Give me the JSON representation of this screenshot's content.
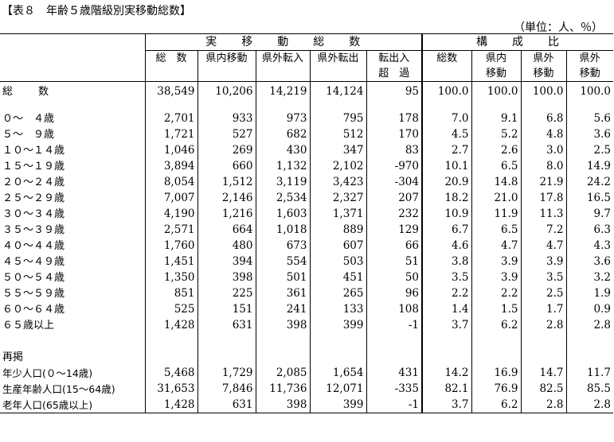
{
  "title": "【表８　年齢５歳階級別実移動総数】",
  "unit": "（単位：人、％）",
  "headers": {
    "group1": "実　　移　　動　　総　　数",
    "group2": "構　　成　　比",
    "cols1": [
      [
        "総　数",
        ""
      ],
      [
        "県内移動",
        ""
      ],
      [
        "県外転入",
        ""
      ],
      [
        "県外転出",
        ""
      ],
      [
        "転出入",
        "超　過"
      ]
    ],
    "cols2": [
      [
        "総数",
        ""
      ],
      [
        "県内",
        "移動"
      ],
      [
        "県外",
        "移動"
      ],
      [
        "県外",
        "移動"
      ]
    ]
  },
  "total": {
    "label": "総　　数",
    "values": [
      "38,549",
      "10,206",
      "14,219",
      "14,124",
      "95",
      "100.0",
      "100.0",
      "100.0",
      "100.0"
    ]
  },
  "age_rows": [
    {
      "label": "０～　４歳",
      "values": [
        "2,701",
        "933",
        "973",
        "795",
        "178",
        "7.0",
        "9.1",
        "6.8",
        "5.6"
      ]
    },
    {
      "label": "５～　９歳",
      "values": [
        "1,721",
        "527",
        "682",
        "512",
        "170",
        "4.5",
        "5.2",
        "4.8",
        "3.6"
      ]
    },
    {
      "label": "１０～１４歳",
      "values": [
        "1,046",
        "269",
        "430",
        "347",
        "83",
        "2.7",
        "2.6",
        "3.0",
        "2.5"
      ]
    },
    {
      "label": "１５～１９歳",
      "values": [
        "3,894",
        "660",
        "1,132",
        "2,102",
        "-970",
        "10.1",
        "6.5",
        "8.0",
        "14.9"
      ]
    },
    {
      "label": "２０～２４歳",
      "values": [
        "8,054",
        "1,512",
        "3,119",
        "3,423",
        "-304",
        "20.9",
        "14.8",
        "21.9",
        "24.2"
      ]
    },
    {
      "label": "２５～２９歳",
      "values": [
        "7,007",
        "2,146",
        "2,534",
        "2,327",
        "207",
        "18.2",
        "21.0",
        "17.8",
        "16.5"
      ]
    },
    {
      "label": "３０～３４歳",
      "values": [
        "4,190",
        "1,216",
        "1,603",
        "1,371",
        "232",
        "10.9",
        "11.9",
        "11.3",
        "9.7"
      ]
    },
    {
      "label": "３５～３９歳",
      "values": [
        "2,571",
        "664",
        "1,018",
        "889",
        "129",
        "6.7",
        "6.5",
        "7.2",
        "6.3"
      ]
    },
    {
      "label": "４０～４４歳",
      "values": [
        "1,760",
        "480",
        "673",
        "607",
        "66",
        "4.6",
        "4.7",
        "4.7",
        "4.3"
      ]
    },
    {
      "label": "４５～４９歳",
      "values": [
        "1,451",
        "394",
        "554",
        "503",
        "51",
        "3.8",
        "3.9",
        "3.9",
        "3.6"
      ]
    },
    {
      "label": "５０～５４歳",
      "values": [
        "1,350",
        "398",
        "501",
        "451",
        "50",
        "3.5",
        "3.9",
        "3.5",
        "3.2"
      ]
    },
    {
      "label": "５５～５９歳",
      "values": [
        "851",
        "225",
        "361",
        "265",
        "96",
        "2.2",
        "2.2",
        "2.5",
        "1.9"
      ]
    },
    {
      "label": "６０～６４歳",
      "values": [
        "525",
        "151",
        "241",
        "133",
        "108",
        "1.4",
        "1.5",
        "1.7",
        "0.9"
      ]
    },
    {
      "label": "６５歳以上",
      "values": [
        "1,428",
        "631",
        "398",
        "399",
        "-1",
        "3.7",
        "6.2",
        "2.8",
        "2.8"
      ]
    }
  ],
  "section_label": "再掲",
  "summary_rows": [
    {
      "label": "年少人口(０～14歳)",
      "values": [
        "5,468",
        "1,729",
        "2,085",
        "1,654",
        "431",
        "14.2",
        "16.9",
        "14.7",
        "11.7"
      ]
    },
    {
      "label": "生産年齢人口(15～64歳)",
      "values": [
        "31,653",
        "7,846",
        "11,736",
        "12,071",
        "-335",
        "82.1",
        "76.9",
        "82.5",
        "85.5"
      ]
    },
    {
      "label": "老年人口(65歳以上)",
      "values": [
        "1,428",
        "631",
        "398",
        "399",
        "-1",
        "3.7",
        "6.2",
        "2.8",
        "2.8"
      ]
    }
  ]
}
